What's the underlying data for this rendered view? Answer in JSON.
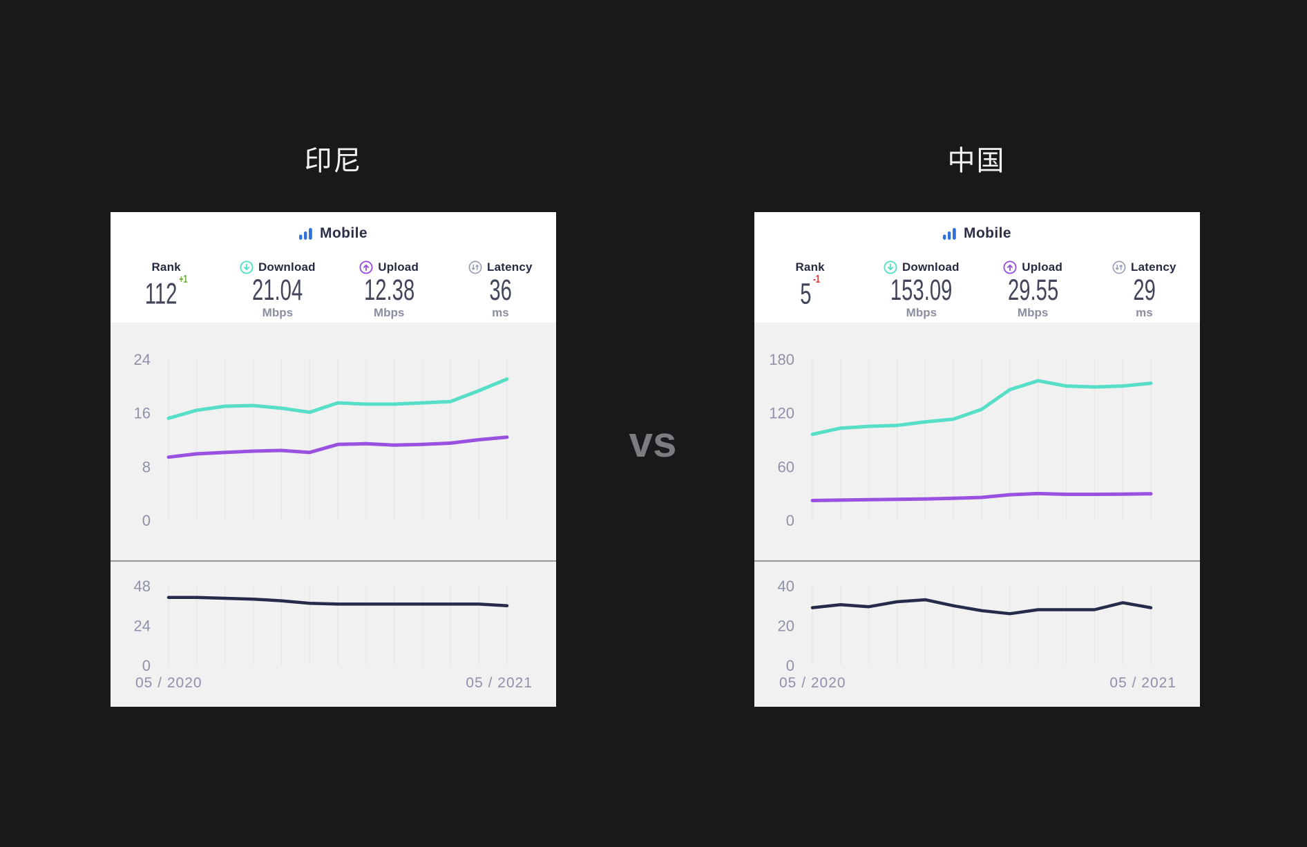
{
  "page": {
    "background": "#19191b",
    "vs_label": "vs"
  },
  "colors": {
    "download_teal": "#56dfc6",
    "upload_purple": "#9b51df",
    "latency_navy": "#262b49",
    "mobile_blue": "#2f72d9",
    "rank_up_green": "#6fa939",
    "rank_down_red": "#e03131",
    "axis_text": "#8f91a8",
    "gridline": "#e6e6e9",
    "chart_bg": "#f1f1f2",
    "card_bg": "#ffffff",
    "page_bg": "#19191b"
  },
  "cards": [
    {
      "title": "印尼",
      "tab_label": "Mobile",
      "stats": {
        "rank": {
          "label": "Rank",
          "value": "112",
          "delta": "+1",
          "delta_color": "#6fa939"
        },
        "download": {
          "label": "Download",
          "value": "21.04",
          "unit": "Mbps"
        },
        "upload": {
          "label": "Upload",
          "value": "12.38",
          "unit": "Mbps"
        },
        "latency": {
          "label": "Latency",
          "value": "36",
          "unit": "ms"
        }
      }
    },
    {
      "title": "中国",
      "tab_label": "Mobile",
      "stats": {
        "rank": {
          "label": "Rank",
          "value": "5",
          "delta": "-1",
          "delta_color": "#e03131"
        },
        "download": {
          "label": "Download",
          "value": "153.09",
          "unit": "Mbps"
        },
        "upload": {
          "label": "Upload",
          "value": "29.55",
          "unit": "Mbps"
        },
        "latency": {
          "label": "Latency",
          "value": "29",
          "unit": "ms"
        }
      }
    }
  ],
  "chart_data": [
    {
      "id": "indonesia-speed",
      "type": "line",
      "x_note": "13 monthly points from 05/2020 to 05/2021",
      "series": [
        {
          "name": "Download",
          "color": "#56dfc6",
          "values": [
            15.2,
            16.4,
            17.0,
            17.1,
            16.7,
            16.1,
            17.5,
            17.3,
            17.3,
            17.5,
            17.7,
            19.3,
            21.04
          ]
        },
        {
          "name": "Upload",
          "color": "#9b51df",
          "values": [
            9.4,
            9.9,
            10.1,
            10.3,
            10.4,
            10.1,
            11.3,
            11.4,
            11.2,
            11.3,
            11.5,
            12.0,
            12.38
          ]
        }
      ],
      "ylim": [
        0,
        24
      ],
      "yticks": [
        24,
        16,
        8,
        0
      ],
      "grid": "vertical",
      "legend": "none"
    },
    {
      "id": "indonesia-latency",
      "type": "line",
      "x_note": "13 monthly points from 05/2020 to 05/2021",
      "series": [
        {
          "name": "Latency",
          "color": "#262b49",
          "values": [
            41,
            41,
            40.5,
            40,
            39,
            37.5,
            37,
            37,
            37,
            37,
            37,
            37,
            36
          ]
        }
      ],
      "ylim": [
        0,
        48
      ],
      "yticks": [
        48,
        24,
        0
      ],
      "xtick_labels": [
        "05 / 2020",
        "05 / 2021"
      ],
      "grid": "vertical",
      "legend": "none"
    },
    {
      "id": "china-speed",
      "type": "line",
      "x_note": "13 monthly points from 05/2020 to 05/2021",
      "series": [
        {
          "name": "Download",
          "color": "#56dfc6",
          "values": [
            96,
            103,
            105,
            106,
            110,
            113,
            124,
            146,
            156,
            150,
            149,
            150,
            153.09
          ]
        },
        {
          "name": "Upload",
          "color": "#9b51df",
          "values": [
            22,
            22.5,
            23,
            23.3,
            23.8,
            24.5,
            25.5,
            28.5,
            29.8,
            29,
            29,
            29.2,
            29.55
          ]
        }
      ],
      "ylim": [
        0,
        180
      ],
      "yticks": [
        180,
        120,
        60,
        0
      ],
      "grid": "vertical",
      "legend": "none"
    },
    {
      "id": "china-latency",
      "type": "line",
      "x_note": "13 monthly points from 05/2020 to 05/2021",
      "series": [
        {
          "name": "Latency",
          "color": "#262b49",
          "values": [
            29,
            30.5,
            29.5,
            32,
            33,
            30,
            27.5,
            26,
            28,
            28,
            28,
            31.5,
            29
          ]
        }
      ],
      "ylim": [
        0,
        40
      ],
      "yticks": [
        40,
        20,
        0
      ],
      "xtick_labels": [
        "05 / 2020",
        "05 / 2021"
      ],
      "grid": "vertical",
      "legend": "none"
    }
  ]
}
